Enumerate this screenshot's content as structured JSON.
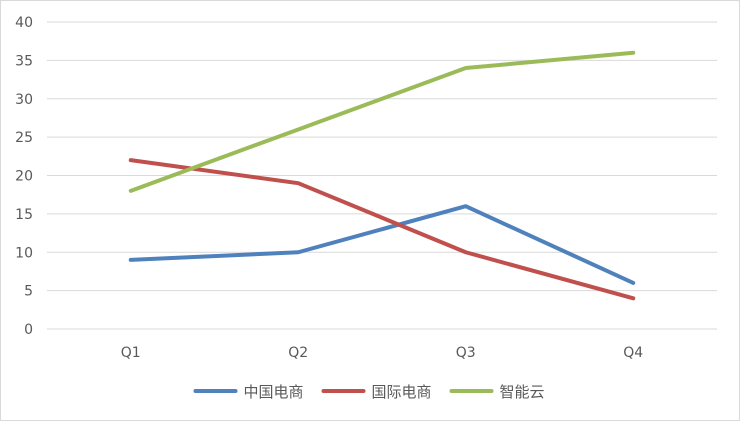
{
  "chart_data": {
    "type": "line",
    "categories": [
      "Q1",
      "Q2",
      "Q3",
      "Q4"
    ],
    "ylim": [
      0,
      40
    ],
    "yticks": [
      0,
      5,
      10,
      15,
      20,
      25,
      30,
      35,
      40
    ],
    "grid": true,
    "legend_position": "bottom",
    "series": [
      {
        "name": "中国电商",
        "color": "#4f81bd",
        "values": [
          9,
          10,
          16,
          6
        ]
      },
      {
        "name": "国际电商",
        "color": "#c0504d",
        "values": [
          22,
          19,
          10,
          4
        ]
      },
      {
        "name": "智能云",
        "color": "#9bbb59",
        "values": [
          18,
          26,
          34,
          36
        ]
      }
    ]
  }
}
